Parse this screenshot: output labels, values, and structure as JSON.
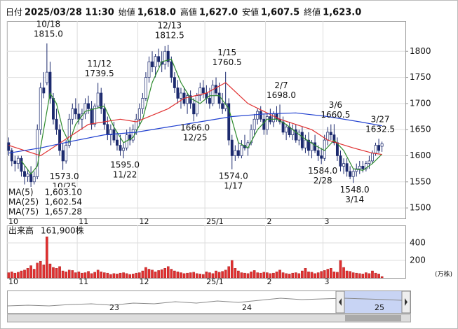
{
  "header": [
    {
      "label": "日付",
      "value": "2025/03/28 11:30"
    },
    {
      "label": "始値",
      "value": "1,618.0",
      "color": "#111111"
    },
    {
      "label": "高値",
      "value": "1,627.0",
      "color": "#e01010"
    },
    {
      "label": "安値",
      "value": "1,607.5",
      "color": "#108010"
    },
    {
      "label": "終値",
      "value": "1,623.0",
      "color": "#111111"
    }
  ],
  "chart_data": [
    {
      "type": "candlestick",
      "ylim": [
        1480,
        1858
      ],
      "yticks": [
        1500,
        1550,
        1600,
        1650,
        1700,
        1750,
        1800
      ],
      "grid": true,
      "xticks": [
        {
          "value": 0,
          "label": "10"
        },
        {
          "value": 22,
          "label": "11"
        },
        {
          "value": 41,
          "label": "12"
        },
        {
          "value": 62,
          "label": "25/1"
        },
        {
          "value": 81,
          "label": "2"
        },
        {
          "value": 99,
          "label": "3"
        }
      ],
      "up_color": "#ffffff",
      "down_color": "#1c2a6e",
      "edge_color": "#1c2a6e",
      "ohlc": [
        [
          1625,
          1635,
          1600,
          1610
        ],
        [
          1610,
          1615,
          1580,
          1590
        ],
        [
          1590,
          1600,
          1570,
          1585
        ],
        [
          1585,
          1600,
          1575,
          1595
        ],
        [
          1595,
          1600,
          1560,
          1570
        ],
        [
          1570,
          1580,
          1545,
          1560
        ],
        [
          1560,
          1575,
          1550,
          1565
        ],
        [
          1565,
          1580,
          1540,
          1550
        ],
        [
          1550,
          1570,
          1545,
          1560
        ],
        [
          1560,
          1660,
          1555,
          1650
        ],
        [
          1650,
          1740,
          1640,
          1730
        ],
        [
          1730,
          1760,
          1710,
          1720
        ],
        [
          1740,
          1815,
          1735,
          1760
        ],
        [
          1760,
          1780,
          1700,
          1710
        ],
        [
          1710,
          1720,
          1660,
          1670
        ],
        [
          1670,
          1690,
          1640,
          1650
        ],
        [
          1650,
          1660,
          1600,
          1610
        ],
        [
          1610,
          1625,
          1573,
          1590
        ],
        [
          1590,
          1630,
          1585,
          1620
        ],
        [
          1620,
          1680,
          1615,
          1670
        ],
        [
          1670,
          1700,
          1660,
          1690
        ],
        [
          1690,
          1710,
          1670,
          1680
        ],
        [
          1680,
          1700,
          1660,
          1670
        ],
        [
          1670,
          1690,
          1650,
          1680
        ],
        [
          1680,
          1710,
          1670,
          1700
        ],
        [
          1700,
          1715,
          1680,
          1690
        ],
        [
          1690,
          1705,
          1650,
          1660
        ],
        [
          1660,
          1700,
          1655,
          1695
        ],
        [
          1695,
          1739.5,
          1690,
          1720
        ],
        [
          1720,
          1730,
          1680,
          1690
        ],
        [
          1690,
          1700,
          1650,
          1660
        ],
        [
          1660,
          1675,
          1630,
          1640
        ],
        [
          1640,
          1660,
          1620,
          1650
        ],
        [
          1650,
          1665,
          1625,
          1630
        ],
        [
          1630,
          1645,
          1610,
          1620
        ],
        [
          1620,
          1640,
          1600,
          1610
        ],
        [
          1610,
          1625,
          1595,
          1615
        ],
        [
          1615,
          1650,
          1610,
          1640
        ],
        [
          1640,
          1655,
          1620,
          1630
        ],
        [
          1630,
          1660,
          1625,
          1650
        ],
        [
          1650,
          1680,
          1640,
          1670
        ],
        [
          1670,
          1700,
          1660,
          1690
        ],
        [
          1690,
          1720,
          1680,
          1710
        ],
        [
          1710,
          1760,
          1705,
          1750
        ],
        [
          1750,
          1790,
          1740,
          1780
        ],
        [
          1780,
          1800,
          1760,
          1770
        ],
        [
          1770,
          1795,
          1750,
          1790
        ],
        [
          1790,
          1805,
          1770,
          1780
        ],
        [
          1780,
          1800,
          1760,
          1775
        ],
        [
          1775,
          1810,
          1765,
          1800
        ],
        [
          1800,
          1812.5,
          1770,
          1780
        ],
        [
          1780,
          1790,
          1740,
          1750
        ],
        [
          1750,
          1760,
          1720,
          1730
        ],
        [
          1730,
          1745,
          1700,
          1710
        ],
        [
          1710,
          1730,
          1690,
          1720
        ],
        [
          1720,
          1730,
          1695,
          1700
        ],
        [
          1700,
          1720,
          1680,
          1715
        ],
        [
          1715,
          1725,
          1690,
          1700
        ],
        [
          1700,
          1710,
          1666,
          1680
        ],
        [
          1680,
          1720,
          1675,
          1715
        ],
        [
          1715,
          1740,
          1705,
          1730
        ],
        [
          1730,
          1745,
          1710,
          1720
        ],
        [
          1720,
          1735,
          1700,
          1710
        ],
        [
          1710,
          1730,
          1690,
          1700
        ],
        [
          1700,
          1745,
          1695,
          1735
        ],
        [
          1735,
          1750,
          1715,
          1720
        ],
        [
          1720,
          1740,
          1690,
          1700
        ],
        [
          1700,
          1720,
          1680,
          1690
        ],
        [
          1690,
          1760.5,
          1685,
          1700
        ],
        [
          1700,
          1710,
          1620,
          1630
        ],
        [
          1630,
          1640,
          1574,
          1600
        ],
        [
          1600,
          1620,
          1590,
          1610
        ],
        [
          1610,
          1625,
          1595,
          1600
        ],
        [
          1600,
          1630,
          1595,
          1620
        ],
        [
          1620,
          1640,
          1610,
          1615
        ],
        [
          1615,
          1630,
          1600,
          1625
        ],
        [
          1625,
          1660,
          1620,
          1650
        ],
        [
          1650,
          1680,
          1640,
          1670
        ],
        [
          1670,
          1690,
          1660,
          1685
        ],
        [
          1685,
          1695,
          1665,
          1670
        ],
        [
          1670,
          1680,
          1640,
          1650
        ],
        [
          1650,
          1680,
          1640,
          1675
        ],
        [
          1675,
          1690,
          1660,
          1665
        ],
        [
          1665,
          1685,
          1655,
          1680
        ],
        [
          1680,
          1695,
          1665,
          1670
        ],
        [
          1670,
          1698,
          1660,
          1665
        ],
        [
          1665,
          1675,
          1640,
          1645
        ],
        [
          1645,
          1660,
          1630,
          1655
        ],
        [
          1655,
          1665,
          1635,
          1640
        ],
        [
          1640,
          1660,
          1630,
          1650
        ],
        [
          1650,
          1660,
          1625,
          1630
        ],
        [
          1630,
          1650,
          1620,
          1645
        ],
        [
          1645,
          1655,
          1610,
          1615
        ],
        [
          1615,
          1640,
          1605,
          1630
        ],
        [
          1630,
          1645,
          1600,
          1610
        ],
        [
          1610,
          1630,
          1595,
          1625
        ],
        [
          1625,
          1640,
          1605,
          1610
        ],
        [
          1610,
          1620,
          1590,
          1600
        ],
        [
          1600,
          1615,
          1584,
          1595
        ],
        [
          1595,
          1640,
          1590,
          1630
        ],
        [
          1630,
          1655,
          1620,
          1645
        ],
        [
          1645,
          1660,
          1630,
          1640
        ],
        [
          1640,
          1660.5,
          1620,
          1625
        ],
        [
          1625,
          1635,
          1590,
          1600
        ],
        [
          1600,
          1610,
          1570,
          1580
        ],
        [
          1580,
          1595,
          1565,
          1585
        ],
        [
          1585,
          1595,
          1560,
          1570
        ],
        [
          1570,
          1580,
          1555,
          1560
        ],
        [
          1560,
          1575,
          1548,
          1570
        ],
        [
          1570,
          1585,
          1560,
          1575
        ],
        [
          1575,
          1590,
          1565,
          1580
        ],
        [
          1580,
          1590,
          1568,
          1575
        ],
        [
          1575,
          1590,
          1570,
          1585
        ],
        [
          1585,
          1600,
          1575,
          1590
        ],
        [
          1590,
          1610,
          1585,
          1605
        ],
        [
          1605,
          1625,
          1600,
          1620
        ],
        [
          1620,
          1632.5,
          1605,
          1610
        ],
        [
          1618,
          1627,
          1607.5,
          1623
        ]
      ],
      "series": [
        {
          "name": "MA(5)",
          "color": "#2e8b2e",
          "legend_label": "1,603.10",
          "x": [
            4,
            7,
            9,
            11,
            13,
            15,
            17,
            19,
            21,
            24,
            27,
            30,
            33,
            36,
            39,
            42,
            45,
            48,
            51,
            54,
            57,
            60,
            63,
            66,
            69,
            72,
            75,
            78,
            81,
            84,
            87,
            90,
            93,
            96,
            99,
            102,
            105,
            108,
            111,
            114,
            117
          ],
          "values": [
            1590,
            1565,
            1580,
            1650,
            1720,
            1700,
            1650,
            1625,
            1660,
            1685,
            1690,
            1695,
            1655,
            1625,
            1635,
            1670,
            1740,
            1780,
            1785,
            1740,
            1710,
            1700,
            1715,
            1715,
            1690,
            1625,
            1615,
            1650,
            1670,
            1670,
            1660,
            1645,
            1632,
            1620,
            1610,
            1630,
            1610,
            1575,
            1572,
            1585,
            1603.1
          ]
        },
        {
          "name": "MA(25)",
          "color": "#e03030",
          "legend_label": "1,602.54",
          "x": [
            0,
            10,
            20,
            25,
            35,
            40,
            50,
            55,
            62,
            68,
            75,
            85,
            95,
            100,
            108,
            114,
            117
          ],
          "values": [
            1620,
            1600,
            1640,
            1660,
            1670,
            1665,
            1690,
            1710,
            1720,
            1740,
            1700,
            1670,
            1650,
            1630,
            1615,
            1605,
            1602.54
          ]
        },
        {
          "name": "MA(75)",
          "color": "#2040d0",
          "legend_label": "1,657.28",
          "x": [
            0,
            10,
            20,
            30,
            40,
            50,
            60,
            70,
            80,
            90,
            100,
            110,
            117
          ],
          "values": [
            1605,
            1615,
            1628,
            1640,
            1645,
            1655,
            1665,
            1675,
            1680,
            1682,
            1675,
            1665,
            1657.28
          ]
        }
      ],
      "annotations": [
        {
          "candle": 12,
          "kind": "high",
          "date": "10/18",
          "price": {
            "value": 1815,
            "label": "1815.0"
          }
        },
        {
          "candle": 17,
          "kind": "low",
          "date": "10/25",
          "price": {
            "value": 1573,
            "label": "1573.0"
          }
        },
        {
          "candle": 28,
          "kind": "high",
          "date": "11/12",
          "price": {
            "value": 1739.5,
            "label": "1739.5"
          }
        },
        {
          "candle": 36,
          "kind": "low",
          "date": "11/22",
          "price": {
            "value": 1595,
            "label": "1595.0"
          }
        },
        {
          "candle": 50,
          "kind": "high",
          "date": "12/13",
          "price": {
            "value": 1812.5,
            "label": "1812.5"
          }
        },
        {
          "candle": 58,
          "kind": "low",
          "date": "12/25",
          "price": {
            "value": 1666,
            "label": "1666.0"
          }
        },
        {
          "candle": 68,
          "kind": "high",
          "date": "1/15",
          "price": {
            "value": 1760.5,
            "label": "1760.5"
          }
        },
        {
          "candle": 70,
          "kind": "low",
          "date": "1/17",
          "price": {
            "value": 1574,
            "label": "1574.0"
          }
        },
        {
          "candle": 85,
          "kind": "high",
          "date": "2/7",
          "price": {
            "value": 1698,
            "label": "1698.0"
          }
        },
        {
          "candle": 98,
          "kind": "low",
          "date": "2/28",
          "price": {
            "value": 1584,
            "label": "1584.0"
          }
        },
        {
          "candle": 102,
          "kind": "high",
          "date": "3/6",
          "price": {
            "value": 1660.5,
            "label": "1660.5"
          }
        },
        {
          "candle": 108,
          "kind": "low",
          "date": "3/14",
          "price": {
            "value": 1548,
            "label": "1548.0"
          }
        },
        {
          "candle": 116,
          "kind": "high",
          "date": "3/27",
          "price": {
            "value": 1632.5,
            "label": "1632.5"
          }
        }
      ]
    },
    {
      "type": "bar",
      "title": "出来高",
      "subtitle": "161,900株",
      "unit": "(万株)",
      "color": "#e03030",
      "ylim": [
        0,
        600
      ],
      "yticks": [
        200,
        400
      ],
      "grid": true,
      "values": [
        60,
        70,
        55,
        65,
        80,
        90,
        110,
        140,
        100,
        170,
        190,
        150,
        470,
        160,
        120,
        110,
        130,
        80,
        70,
        90,
        85,
        60,
        70,
        55,
        60,
        75,
        50,
        65,
        90,
        70,
        60,
        55,
        40,
        50,
        45,
        55,
        60,
        50,
        40,
        45,
        55,
        60,
        80,
        120,
        100,
        90,
        70,
        85,
        95,
        110,
        130,
        100,
        80,
        70,
        60,
        50,
        55,
        60,
        65,
        50,
        45,
        40,
        70,
        60,
        50,
        80,
        65,
        75,
        90,
        130,
        200,
        110,
        80,
        60,
        55,
        50,
        70,
        85,
        60,
        55,
        65,
        60,
        50,
        55,
        70,
        90,
        60,
        50,
        45,
        55,
        60,
        50,
        80,
        110,
        70,
        65,
        50,
        60,
        75,
        85,
        100,
        110,
        70,
        65,
        200,
        120,
        80,
        75,
        60,
        55,
        50,
        45,
        60,
        50,
        80,
        55,
        45,
        16.19
      ]
    }
  ],
  "navigator": {
    "labels": [
      "23",
      "24",
      "25"
    ]
  }
}
